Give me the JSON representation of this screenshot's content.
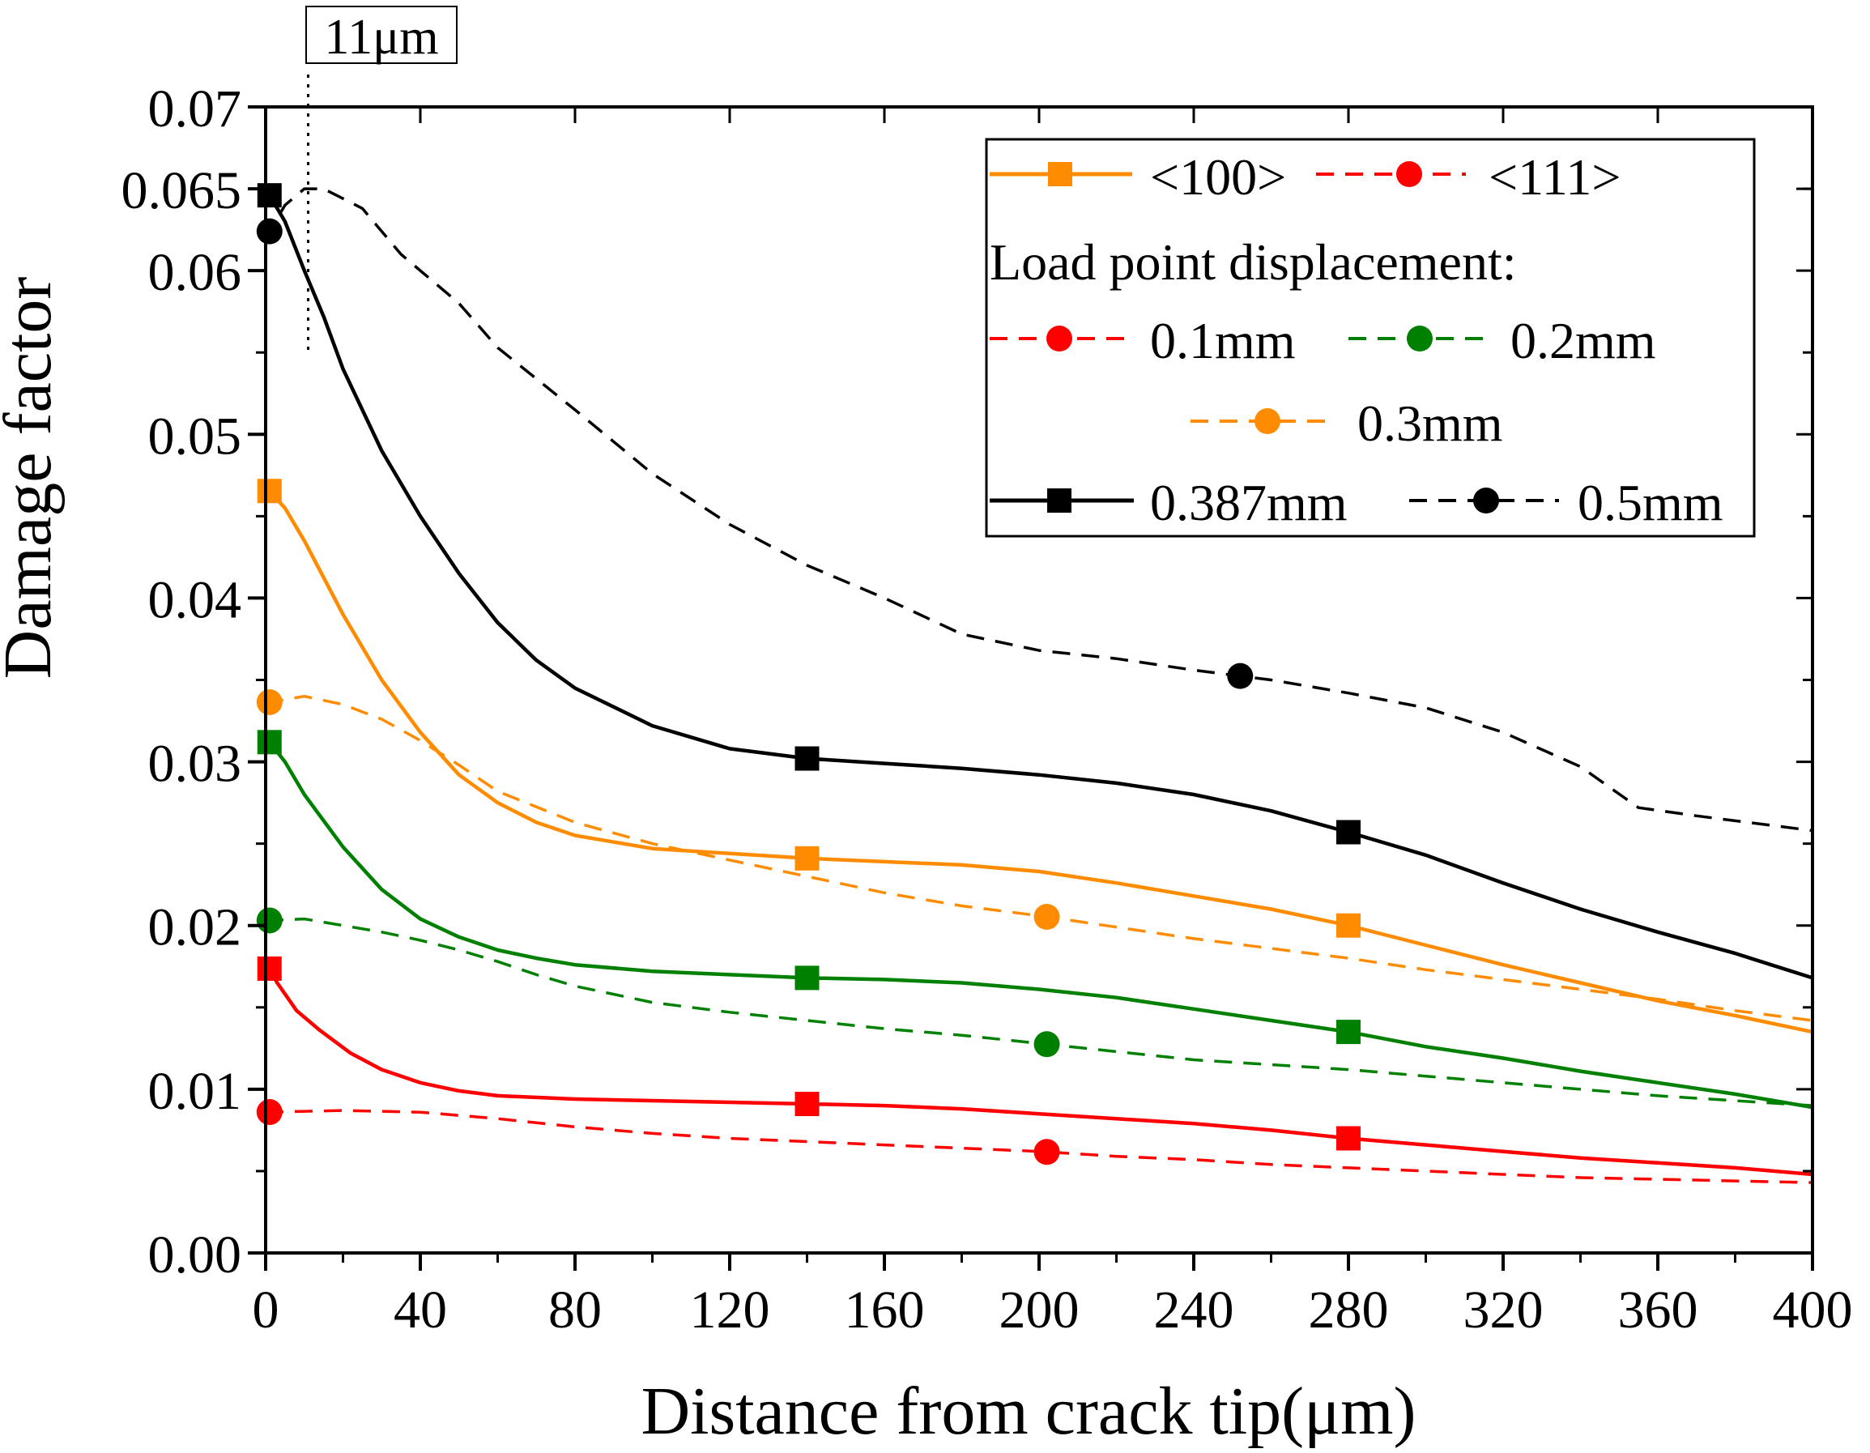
{
  "chart_data": {
    "type": "line",
    "title": "",
    "xlabel": "Distance from crack tip(μm)",
    "ylabel": "Damage factor",
    "xlim": [
      0,
      400
    ],
    "ylim": [
      0,
      0.07
    ],
    "x_ticks": [
      "0",
      "40",
      "80",
      "120",
      "160",
      "200",
      "240",
      "280",
      "320",
      "360",
      "400"
    ],
    "y_ticks": [
      "0.00",
      "0.01",
      "0.02",
      "0.03",
      "0.04",
      "0.05",
      "0.06",
      "0.065",
      "0.07"
    ],
    "y_tick_values": [
      0,
      0.01,
      0.02,
      0.03,
      0.04,
      0.05,
      0.06,
      0.065,
      0.07
    ],
    "annotation": {
      "label": "11μm",
      "x": 11
    },
    "legend": {
      "placement": "top-right",
      "orientation_label": "<100>",
      "orientation_label_2": "<111>",
      "heading": "Load point displacement:",
      "entries": [
        "0.1mm",
        "0.2mm",
        "0.3mm",
        "0.387mm",
        "0.5mm"
      ]
    },
    "colors": {
      "0.1mm": "#ff0000",
      "0.2mm": "#008000",
      "0.3mm": "#ff8c00",
      "0.387mm": "#000000",
      "0.5mm": "#000000"
    },
    "series": [
      {
        "name": "0.1mm <100>",
        "load": "0.1mm",
        "orientation": "<100>",
        "color": "#ff0000",
        "dash": false,
        "marker": "square",
        "x": [
          0,
          3,
          8,
          14,
          22,
          30,
          40,
          50,
          60,
          80,
          100,
          120,
          140,
          160,
          180,
          200,
          220,
          240,
          260,
          280,
          300,
          320,
          340,
          360,
          380,
          400
        ],
        "y": [
          0.0178,
          0.0165,
          0.0148,
          0.0136,
          0.0122,
          0.0112,
          0.0104,
          0.0099,
          0.0096,
          0.0094,
          0.0093,
          0.0092,
          0.0091,
          0.009,
          0.0088,
          0.0085,
          0.0082,
          0.0079,
          0.0075,
          0.007,
          0.0066,
          0.0062,
          0.0058,
          0.0055,
          0.0052,
          0.0048
        ],
        "markers_x": [
          1,
          140,
          280
        ]
      },
      {
        "name": "0.1mm <111>",
        "load": "0.1mm",
        "orientation": "<111>",
        "color": "#ff0000",
        "dash": true,
        "marker": "circle",
        "x": [
          0,
          20,
          40,
          60,
          80,
          100,
          120,
          140,
          160,
          180,
          200,
          220,
          240,
          260,
          280,
          300,
          320,
          340,
          360,
          380,
          400
        ],
        "y": [
          0.0086,
          0.0087,
          0.0086,
          0.0082,
          0.0077,
          0.0073,
          0.007,
          0.0068,
          0.0066,
          0.0064,
          0.0062,
          0.0059,
          0.0057,
          0.0054,
          0.0052,
          0.005,
          0.0048,
          0.0046,
          0.0045,
          0.0044,
          0.0043
        ],
        "markers_x": [
          1,
          202
        ]
      },
      {
        "name": "0.2mm <100>",
        "load": "0.2mm",
        "orientation": "<100>",
        "color": "#008000",
        "dash": false,
        "marker": "square",
        "x": [
          0,
          5,
          10,
          20,
          30,
          40,
          50,
          60,
          70,
          80,
          100,
          120,
          140,
          160,
          180,
          200,
          220,
          240,
          260,
          280,
          300,
          320,
          340,
          360,
          380,
          400
        ],
        "y": [
          0.0315,
          0.03,
          0.028,
          0.0248,
          0.0222,
          0.0204,
          0.0193,
          0.0185,
          0.018,
          0.0176,
          0.0172,
          0.017,
          0.0168,
          0.0167,
          0.0165,
          0.0161,
          0.0156,
          0.0149,
          0.0142,
          0.0135,
          0.0126,
          0.0119,
          0.0111,
          0.0104,
          0.0097,
          0.0089
        ],
        "markers_x": [
          1,
          140,
          280
        ]
      },
      {
        "name": "0.2mm <111>",
        "load": "0.2mm",
        "orientation": "<111>",
        "color": "#008000",
        "dash": true,
        "marker": "circle",
        "x": [
          0,
          10,
          20,
          30,
          40,
          50,
          60,
          70,
          80,
          100,
          120,
          140,
          160,
          180,
          200,
          220,
          240,
          260,
          280,
          300,
          320,
          340,
          360,
          380,
          400
        ],
        "y": [
          0.0203,
          0.0204,
          0.02,
          0.0196,
          0.0191,
          0.0185,
          0.0178,
          0.017,
          0.0163,
          0.0153,
          0.0147,
          0.0142,
          0.0137,
          0.0133,
          0.0128,
          0.0123,
          0.0118,
          0.0115,
          0.0112,
          0.0108,
          0.0104,
          0.01,
          0.0096,
          0.0093,
          0.009
        ],
        "markers_x": [
          1,
          202
        ]
      },
      {
        "name": "0.3mm <100>",
        "load": "0.3mm",
        "orientation": "<100>",
        "color": "#ff8c00",
        "dash": false,
        "marker": "square",
        "x": [
          0,
          5,
          10,
          20,
          30,
          40,
          50,
          60,
          70,
          80,
          100,
          120,
          140,
          160,
          180,
          200,
          220,
          240,
          260,
          280,
          300,
          320,
          340,
          360,
          380,
          400
        ],
        "y": [
          0.0468,
          0.0455,
          0.0435,
          0.039,
          0.035,
          0.0318,
          0.0292,
          0.0275,
          0.0263,
          0.0255,
          0.0247,
          0.0244,
          0.0241,
          0.0239,
          0.0237,
          0.0233,
          0.0226,
          0.0218,
          0.021,
          0.02,
          0.0188,
          0.0176,
          0.0165,
          0.0154,
          0.0145,
          0.0135
        ],
        "markers_x": [
          1,
          140,
          280
        ]
      },
      {
        "name": "0.3mm <111>",
        "load": "0.3mm",
        "orientation": "<111>",
        "color": "#ff8c00",
        "dash": true,
        "marker": "circle",
        "x": [
          0,
          10,
          20,
          30,
          40,
          50,
          60,
          80,
          100,
          120,
          140,
          160,
          180,
          200,
          220,
          240,
          260,
          280,
          300,
          320,
          340,
          360,
          380,
          400
        ],
        "y": [
          0.0336,
          0.034,
          0.0335,
          0.0326,
          0.0313,
          0.0298,
          0.0282,
          0.0263,
          0.025,
          0.024,
          0.023,
          0.022,
          0.0212,
          0.0206,
          0.0199,
          0.0192,
          0.0186,
          0.018,
          0.0173,
          0.0167,
          0.0161,
          0.0155,
          0.0148,
          0.0142
        ],
        "markers_x": [
          1,
          202
        ]
      },
      {
        "name": "0.387mm <100>",
        "load": "0.387mm",
        "orientation": "<100>",
        "color": "#000000",
        "dash": false,
        "marker": "square",
        "x": [
          0,
          5,
          10,
          15,
          20,
          30,
          40,
          50,
          60,
          70,
          80,
          100,
          120,
          140,
          160,
          180,
          200,
          220,
          240,
          260,
          280,
          300,
          320,
          340,
          360,
          380,
          400
        ],
        "y": [
          0.065,
          0.063,
          0.06,
          0.0572,
          0.054,
          0.049,
          0.045,
          0.0415,
          0.0385,
          0.0362,
          0.0345,
          0.0322,
          0.0308,
          0.0302,
          0.0299,
          0.0296,
          0.0292,
          0.0287,
          0.028,
          0.027,
          0.0257,
          0.0243,
          0.0226,
          0.021,
          0.0196,
          0.0183,
          0.0168
        ],
        "markers_x": [
          1,
          140,
          280
        ]
      },
      {
        "name": "0.5mm <111>",
        "load": "0.5mm",
        "orientation": "<111>",
        "color": "#000000",
        "dash": true,
        "marker": "circle",
        "x": [
          0,
          5,
          10,
          15,
          25,
          35,
          50,
          60,
          80,
          100,
          120,
          140,
          160,
          180,
          200,
          220,
          240,
          260,
          280,
          300,
          320,
          340,
          355,
          370,
          400
        ],
        "y": [
          0.062,
          0.064,
          0.065,
          0.065,
          0.0638,
          0.061,
          0.058,
          0.0553,
          0.0515,
          0.0476,
          0.0445,
          0.042,
          0.04,
          0.0378,
          0.0368,
          0.0363,
          0.0356,
          0.035,
          0.0342,
          0.0333,
          0.0318,
          0.0297,
          0.0272,
          0.0267,
          0.0258
        ],
        "markers_x": [
          1,
          252
        ]
      }
    ]
  }
}
